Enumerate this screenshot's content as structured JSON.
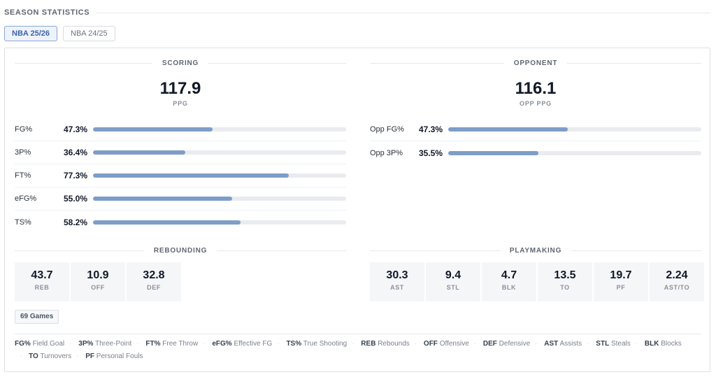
{
  "header": {
    "title": "SEASON STATISTICS"
  },
  "tabs": [
    {
      "label": "NBA 25/26",
      "active": true
    },
    {
      "label": "NBA 24/25",
      "active": false
    }
  ],
  "scoring": {
    "title": "SCORING",
    "main_value": "117.9",
    "main_label": "PPG",
    "rows": [
      {
        "label": "FG%",
        "value": "47.3%",
        "pct": 47.3
      },
      {
        "label": "3P%",
        "value": "36.4%",
        "pct": 36.4
      },
      {
        "label": "FT%",
        "value": "77.3%",
        "pct": 77.3
      },
      {
        "label": "eFG%",
        "value": "55.0%",
        "pct": 55.0
      },
      {
        "label": "TS%",
        "value": "58.2%",
        "pct": 58.2
      }
    ]
  },
  "opponent": {
    "title": "OPPONENT",
    "main_value": "116.1",
    "main_label": "OPP PPG",
    "rows": [
      {
        "label": "Opp FG%",
        "value": "47.3%",
        "pct": 47.3
      },
      {
        "label": "Opp 3P%",
        "value": "35.5%",
        "pct": 35.5
      }
    ]
  },
  "rebounding": {
    "title": "REBOUNDING",
    "stats": [
      {
        "value": "43.7",
        "label": "REB"
      },
      {
        "value": "10.9",
        "label": "OFF"
      },
      {
        "value": "32.8",
        "label": "DEF"
      }
    ]
  },
  "playmaking": {
    "title": "PLAYMAKING",
    "stats": [
      {
        "value": "30.3",
        "label": "AST"
      },
      {
        "value": "9.4",
        "label": "STL"
      },
      {
        "value": "4.7",
        "label": "BLK"
      },
      {
        "value": "13.5",
        "label": "TO"
      },
      {
        "value": "19.7",
        "label": "PF"
      },
      {
        "value": "2.24",
        "label": "AST/TO"
      }
    ]
  },
  "games_badge": "69 Games",
  "legend": [
    {
      "abbr": "FG%",
      "text": "Field Goal"
    },
    {
      "abbr": "3P%",
      "text": "Three-Point"
    },
    {
      "abbr": "FT%",
      "text": "Free Throw"
    },
    {
      "abbr": "eFG%",
      "text": "Effective FG"
    },
    {
      "abbr": "TS%",
      "text": "True Shooting"
    },
    {
      "abbr": "REB",
      "text": "Rebounds"
    },
    {
      "abbr": "OFF",
      "text": "Offensive"
    },
    {
      "abbr": "DEF",
      "text": "Defensive"
    },
    {
      "abbr": "AST",
      "text": "Assists"
    },
    {
      "abbr": "STL",
      "text": "Steals"
    },
    {
      "abbr": "BLK",
      "text": "Blocks"
    },
    {
      "abbr": "TO",
      "text": "Turnovers"
    },
    {
      "abbr": "PF",
      "text": "Personal Fouls"
    }
  ],
  "colors": {
    "accent": "#3f63a8",
    "bar_fill": "#7e9dc8",
    "bar_track": "#e9ebee"
  }
}
